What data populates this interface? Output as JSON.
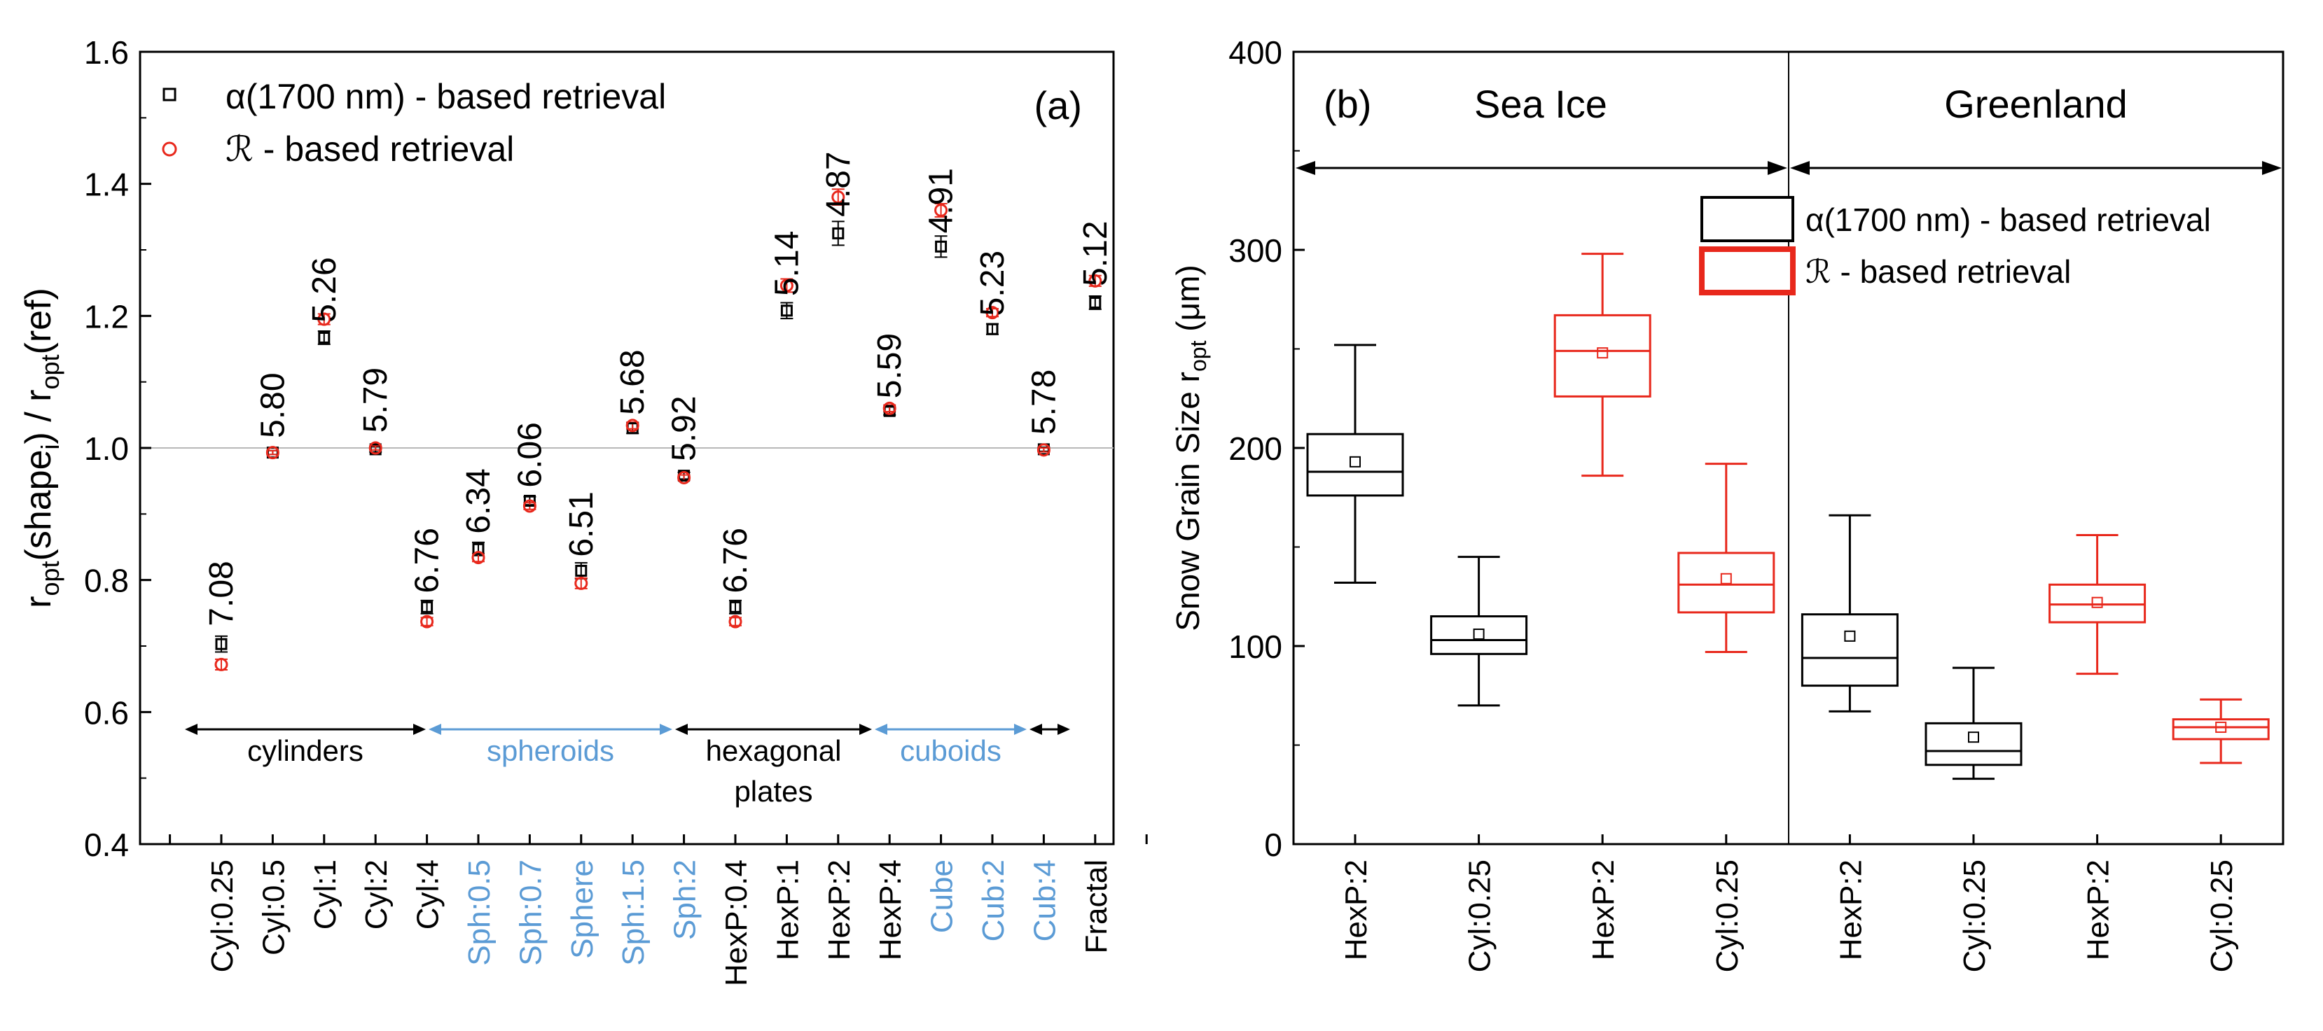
{
  "chart_data": [
    {
      "type": "scatter",
      "panel_label": "(a)",
      "ylabel_main": "r",
      "ylabel_sub1": "opt",
      "ylabel_mid": "(shape",
      "ylabel_sub2": "i",
      "ylabel_mid2": ") / r",
      "ylabel_sub3": "opt",
      "ylabel_tail": "(ref)",
      "ylim": [
        0.4,
        1.6
      ],
      "yticks": [
        "0.4",
        "0.6",
        "0.8",
        "1.0",
        "1.2",
        "1.4",
        "1.6"
      ],
      "reference_line": 1.0,
      "categories": [
        "Cyl:0.25",
        "Cyl:0.5",
        "Cyl:1",
        "Cyl:2",
        "Cyl:4",
        "Sph:0.5",
        "Sph:0.7",
        "Sphere",
        "Sph:1.5",
        "Sph:2",
        "HexP:0.4",
        "HexP:1",
        "HexP:2",
        "HexP:4",
        "Cube",
        "Cub:2",
        "Cub:4",
        "Fractal"
      ],
      "category_colors": [
        "#000000",
        "#000000",
        "#000000",
        "#000000",
        "#000000",
        "#5b9bd5",
        "#5b9bd5",
        "#5b9bd5",
        "#5b9bd5",
        "#5b9bd5",
        "#000000",
        "#000000",
        "#000000",
        "#000000",
        "#5b9bd5",
        "#5b9bd5",
        "#5b9bd5",
        "#000000"
      ],
      "series": [
        {
          "name": "α(1700 nm) - based retrieval",
          "marker": "square",
          "color": "#000000",
          "values": [
            0.703,
            0.993,
            1.167,
            0.998,
            0.759,
            0.847,
            0.92,
            0.814,
            1.03,
            0.958,
            0.759,
            1.208,
            1.325,
            1.056,
            1.305,
            1.18,
            0.998,
            1.22
          ],
          "errors": [
            0.012,
            0.003,
            0.01,
            0.004,
            0.01,
            0.01,
            0.006,
            0.012,
            0.008,
            0.005,
            0.01,
            0.012,
            0.018,
            0.006,
            0.016,
            0.008,
            0.003,
            0.01
          ]
        },
        {
          "name": "ℛ - based retrieval",
          "marker": "circle",
          "color": "#e8281c",
          "values": [
            0.672,
            0.993,
            1.195,
            1.0,
            0.737,
            0.834,
            0.912,
            0.795,
            1.034,
            0.955,
            0.737,
            1.246,
            1.38,
            1.06,
            1.36,
            1.205,
            0.997,
            1.253
          ],
          "errors": [
            0.008,
            0.003,
            0.008,
            0.003,
            0.006,
            0.006,
            0.005,
            0.008,
            0.005,
            0.004,
            0.006,
            0.01,
            0.012,
            0.005,
            0.01,
            0.006,
            0.003,
            0.008
          ]
        }
      ],
      "annotations": [
        "7.08",
        "5.80",
        "5.26",
        "5.79",
        "6.76",
        "6.34",
        "6.06",
        "6.51",
        "5.68",
        "5.92",
        "6.76",
        "5.14",
        "4.87",
        "5.59",
        "4.91",
        "5.23",
        "5.78",
        "5.12"
      ],
      "annotation_y": [
        0.73,
        1.015,
        1.19,
        1.023,
        0.78,
        0.87,
        0.94,
        0.835,
        1.05,
        0.98,
        0.78,
        1.23,
        1.35,
        1.075,
        1.325,
        1.2,
        1.02,
        1.245
      ],
      "groups": [
        {
          "label": "cylinders",
          "color": "#000000"
        },
        {
          "label": "spheroids",
          "color": "#5b9bd5"
        },
        {
          "label": "hexagonal",
          "label2": "plates",
          "color": "#000000"
        },
        {
          "label": "cuboids",
          "color": "#5b9bd5"
        },
        {
          "label": "",
          "color": "#000000"
        }
      ]
    },
    {
      "type": "box",
      "panel_label": "(b)",
      "ylabel_main": "Snow Grain Size r",
      "ylabel_sub": "opt",
      "ylabel_tail": " (μm)",
      "ylim": [
        0,
        400
      ],
      "yticks": [
        "0",
        "100",
        "200",
        "300",
        "400"
      ],
      "regions": [
        "Sea Ice",
        "Greenland"
      ],
      "categories": [
        "HexP:2",
        "Cyl:0.25",
        "HexP:2",
        "Cyl:0.25",
        "HexP:2",
        "Cyl:0.25",
        "HexP:2",
        "Cyl:0.25"
      ],
      "legend": [
        {
          "label": "α(1700 nm) - based retrieval",
          "color": "#000000"
        },
        {
          "label": "ℛ - based retrieval",
          "color": "#e8281c"
        }
      ],
      "boxes": [
        {
          "region": "Sea Ice",
          "category": "HexP:2",
          "series": "α(1700 nm) - based retrieval",
          "color": "#000000",
          "whisker_low": 132,
          "q1": 176,
          "median": 188,
          "q3": 207,
          "whisker_high": 252,
          "mean": 193
        },
        {
          "region": "Sea Ice",
          "category": "Cyl:0.25",
          "series": "α(1700 nm) - based retrieval",
          "color": "#000000",
          "whisker_low": 70,
          "q1": 96,
          "median": 103,
          "q3": 115,
          "whisker_high": 145,
          "mean": 106
        },
        {
          "region": "Sea Ice",
          "category": "HexP:2",
          "series": "ℛ - based retrieval",
          "color": "#e8281c",
          "whisker_low": 186,
          "q1": 226,
          "median": 249,
          "q3": 267,
          "whisker_high": 298,
          "mean": 248
        },
        {
          "region": "Sea Ice",
          "category": "Cyl:0.25",
          "series": "ℛ - based retrieval",
          "color": "#e8281c",
          "whisker_low": 97,
          "q1": 117,
          "median": 131,
          "q3": 147,
          "whisker_high": 192,
          "mean": 134
        },
        {
          "region": "Greenland",
          "category": "HexP:2",
          "series": "α(1700 nm) - based retrieval",
          "color": "#000000",
          "whisker_low": 67,
          "q1": 80,
          "median": 94,
          "q3": 116,
          "whisker_high": 166,
          "mean": 105
        },
        {
          "region": "Greenland",
          "category": "Cyl:0.25",
          "series": "α(1700 nm) - based retrieval",
          "color": "#000000",
          "whisker_low": 33,
          "q1": 40,
          "median": 47,
          "q3": 61,
          "whisker_high": 89,
          "mean": 54
        },
        {
          "region": "Greenland",
          "category": "HexP:2",
          "series": "ℛ - based retrieval",
          "color": "#e8281c",
          "whisker_low": 86,
          "q1": 112,
          "median": 121,
          "q3": 131,
          "whisker_high": 156,
          "mean": 122
        },
        {
          "region": "Greenland",
          "category": "Cyl:0.25",
          "series": "ℛ - based retrieval",
          "color": "#e8281c",
          "whisker_low": 41,
          "q1": 53,
          "median": 59,
          "q3": 63,
          "whisker_high": 73,
          "mean": 59
        }
      ]
    }
  ]
}
